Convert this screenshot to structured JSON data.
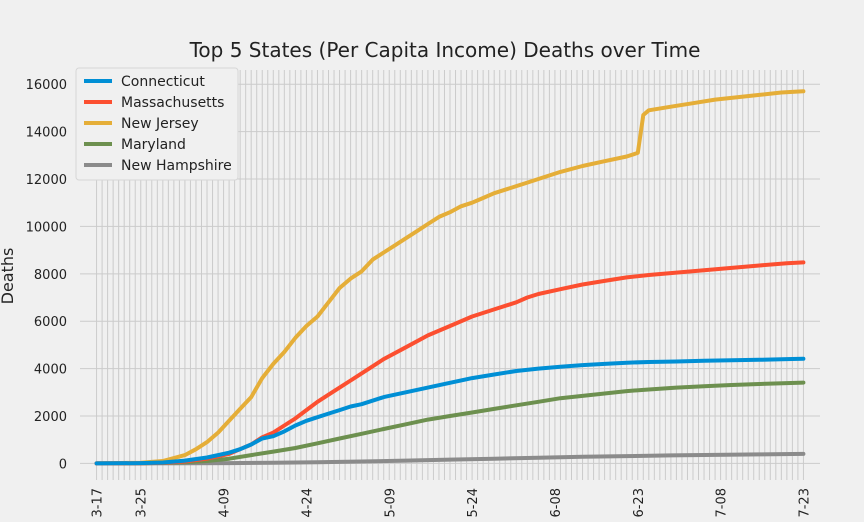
{
  "chart_data": {
    "type": "line",
    "title": "Top 5 States (Per Capita Income) Deaths over Time",
    "xlabel": "",
    "ylabel": "Deaths",
    "x_tick_labels": [
      "3-17",
      "3-25",
      "4-09",
      "4-24",
      "5-09",
      "5-24",
      "6-08",
      "6-23",
      "7-08",
      "7-23"
    ],
    "x_tick_days": [
      0,
      8,
      23,
      38,
      53,
      68,
      83,
      98,
      113,
      128
    ],
    "xlim": [
      -3,
      131
    ],
    "ylim": [
      -700,
      16600
    ],
    "y_ticks": [
      0,
      2000,
      4000,
      6000,
      8000,
      10000,
      12000,
      14000,
      16000
    ],
    "grid": true,
    "legend_position": "top-left",
    "series": [
      {
        "name": "Connecticut",
        "color": "#008fd5",
        "x": [
          0,
          8,
          12,
          16,
          20,
          24,
          26,
          28,
          30,
          32,
          34,
          36,
          38,
          40,
          42,
          44,
          46,
          48,
          52,
          56,
          60,
          64,
          68,
          72,
          76,
          80,
          84,
          88,
          92,
          96,
          100,
          105,
          110,
          115,
          120,
          125,
          128
        ],
        "y": [
          0,
          15,
          40,
          120,
          250,
          450,
          600,
          800,
          1050,
          1150,
          1350,
          1600,
          1800,
          1950,
          2100,
          2250,
          2400,
          2500,
          2800,
          3000,
          3200,
          3400,
          3600,
          3750,
          3900,
          4000,
          4080,
          4150,
          4200,
          4250,
          4280,
          4300,
          4330,
          4350,
          4370,
          4400,
          4420
        ]
      },
      {
        "name": "Massachusetts",
        "color": "#fc4f30",
        "x": [
          0,
          8,
          12,
          16,
          20,
          24,
          26,
          28,
          30,
          32,
          34,
          36,
          38,
          40,
          42,
          44,
          46,
          48,
          52,
          56,
          60,
          64,
          68,
          72,
          76,
          78,
          80,
          84,
          88,
          92,
          96,
          100,
          105,
          110,
          115,
          120,
          125,
          128
        ],
        "y": [
          0,
          10,
          30,
          80,
          200,
          400,
          600,
          800,
          1100,
          1300,
          1600,
          1900,
          2250,
          2600,
          2900,
          3200,
          3500,
          3800,
          4400,
          4900,
          5400,
          5800,
          6200,
          6500,
          6800,
          7000,
          7150,
          7350,
          7550,
          7700,
          7850,
          7950,
          8050,
          8150,
          8250,
          8350,
          8450,
          8480
        ]
      },
      {
        "name": "New Jersey",
        "color": "#e5ae38",
        "x": [
          0,
          8,
          12,
          16,
          18,
          20,
          22,
          24,
          26,
          28,
          30,
          32,
          34,
          36,
          38,
          40,
          42,
          44,
          46,
          48,
          50,
          52,
          54,
          56,
          58,
          60,
          62,
          64,
          66,
          68,
          70,
          72,
          74,
          76,
          78,
          80,
          84,
          88,
          92,
          96,
          98,
          99,
          100,
          104,
          108,
          112,
          116,
          120,
          124,
          128
        ],
        "y": [
          0,
          30,
          100,
          350,
          600,
          900,
          1300,
          1800,
          2300,
          2800,
          3600,
          4200,
          4700,
          5300,
          5800,
          6200,
          6800,
          7400,
          7800,
          8100,
          8600,
          8900,
          9200,
          9500,
          9800,
          10100,
          10400,
          10600,
          10850,
          11000,
          11200,
          11400,
          11550,
          11700,
          11850,
          12000,
          12300,
          12550,
          12750,
          12950,
          13100,
          14700,
          14900,
          15050,
          15200,
          15350,
          15450,
          15550,
          15650,
          15700
        ]
      },
      {
        "name": "Maryland",
        "color": "#6d904f",
        "x": [
          0,
          8,
          12,
          16,
          20,
          24,
          28,
          32,
          36,
          40,
          44,
          48,
          52,
          56,
          60,
          64,
          68,
          72,
          76,
          80,
          84,
          88,
          92,
          96,
          100,
          105,
          110,
          115,
          120,
          125,
          128
        ],
        "y": [
          0,
          5,
          20,
          50,
          100,
          200,
          350,
          500,
          650,
          850,
          1050,
          1250,
          1450,
          1650,
          1850,
          2000,
          2150,
          2300,
          2450,
          2600,
          2750,
          2850,
          2950,
          3050,
          3120,
          3200,
          3260,
          3310,
          3350,
          3390,
          3410
        ]
      },
      {
        "name": "New Hampshire",
        "color": "#8b8b8b",
        "x": [
          0,
          8,
          16,
          24,
          32,
          40,
          48,
          56,
          64,
          72,
          80,
          88,
          96,
          104,
          112,
          120,
          128
        ],
        "y": [
          0,
          2,
          5,
          15,
          30,
          50,
          80,
          120,
          160,
          200,
          240,
          280,
          310,
          340,
          360,
          380,
          400
        ]
      }
    ]
  }
}
